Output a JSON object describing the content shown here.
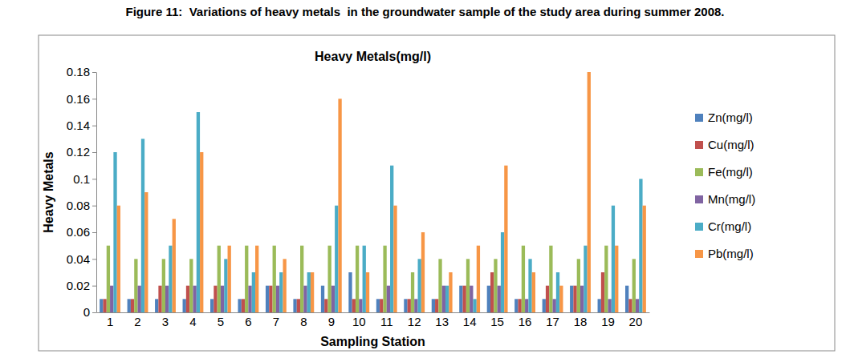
{
  "chart_data": {
    "type": "bar",
    "caption": "Figure 11:  Variations of heavy metals  in the groundwater sample of the study area during summer 2008.",
    "title": "Heavy Metals(mg/l)",
    "x_label": "Sampling Station",
    "y_label": "Heavy Metals",
    "categories": [
      "1",
      "2",
      "3",
      "4",
      "5",
      "6",
      "7",
      "8",
      "9",
      "10",
      "11",
      "12",
      "13",
      "14",
      "15",
      "16",
      "17",
      "18",
      "19",
      "20"
    ],
    "series": [
      {
        "name": "Zn(mg/l)",
        "color": "#4f81bd",
        "values": [
          0.01,
          0.01,
          0.01,
          0.01,
          0.01,
          0.01,
          0.02,
          0.01,
          0.02,
          0.03,
          0.01,
          0.01,
          0.01,
          0.02,
          0.02,
          0.01,
          0.01,
          0.02,
          0.01,
          0.02
        ]
      },
      {
        "name": "Cu(mg/l)",
        "color": "#c0504d",
        "values": [
          0.01,
          0.01,
          0.02,
          0.02,
          0.02,
          0.01,
          0.02,
          0.01,
          0.01,
          0.01,
          0.01,
          0.01,
          0.01,
          0.02,
          0.03,
          0.01,
          0.02,
          0.02,
          0.03,
          0.01
        ]
      },
      {
        "name": "Fe(mg/l)",
        "color": "#9bbb59",
        "values": [
          0.05,
          0.04,
          0.04,
          0.04,
          0.05,
          0.05,
          0.05,
          0.05,
          0.05,
          0.05,
          0.05,
          0.03,
          0.04,
          0.04,
          0.04,
          0.05,
          0.05,
          0.04,
          0.05,
          0.04
        ]
      },
      {
        "name": "Mn(mg/l)",
        "color": "#8064a2",
        "values": [
          0.02,
          0.02,
          0.02,
          0.02,
          0.02,
          0.02,
          0.02,
          0.02,
          0.02,
          0.01,
          0.02,
          0.01,
          0.02,
          0.02,
          0.02,
          0.01,
          0.01,
          0.02,
          0.01,
          0.01
        ]
      },
      {
        "name": "Cr(mg/l)",
        "color": "#4bacc6",
        "values": [
          0.12,
          0.13,
          0.05,
          0.15,
          0.04,
          0.03,
          0.03,
          0.03,
          0.08,
          0.05,
          0.11,
          0.04,
          0.02,
          0.01,
          0.06,
          0.04,
          0.03,
          0.05,
          0.08,
          0.1
        ]
      },
      {
        "name": "Pb(mg/l)",
        "color": "#f79646",
        "values": [
          0.08,
          0.09,
          0.07,
          0.12,
          0.05,
          0.05,
          0.04,
          0.03,
          0.16,
          0.03,
          0.08,
          0.06,
          0.03,
          0.05,
          0.11,
          0.03,
          0.02,
          0.18,
          0.05,
          0.08
        ]
      }
    ],
    "ylim": [
      0,
      0.18
    ],
    "yticks": [
      0,
      0.02,
      0.04,
      0.06,
      0.08,
      0.1,
      0.12,
      0.14,
      0.16,
      0.18
    ],
    "grid": false,
    "legend": "right"
  }
}
